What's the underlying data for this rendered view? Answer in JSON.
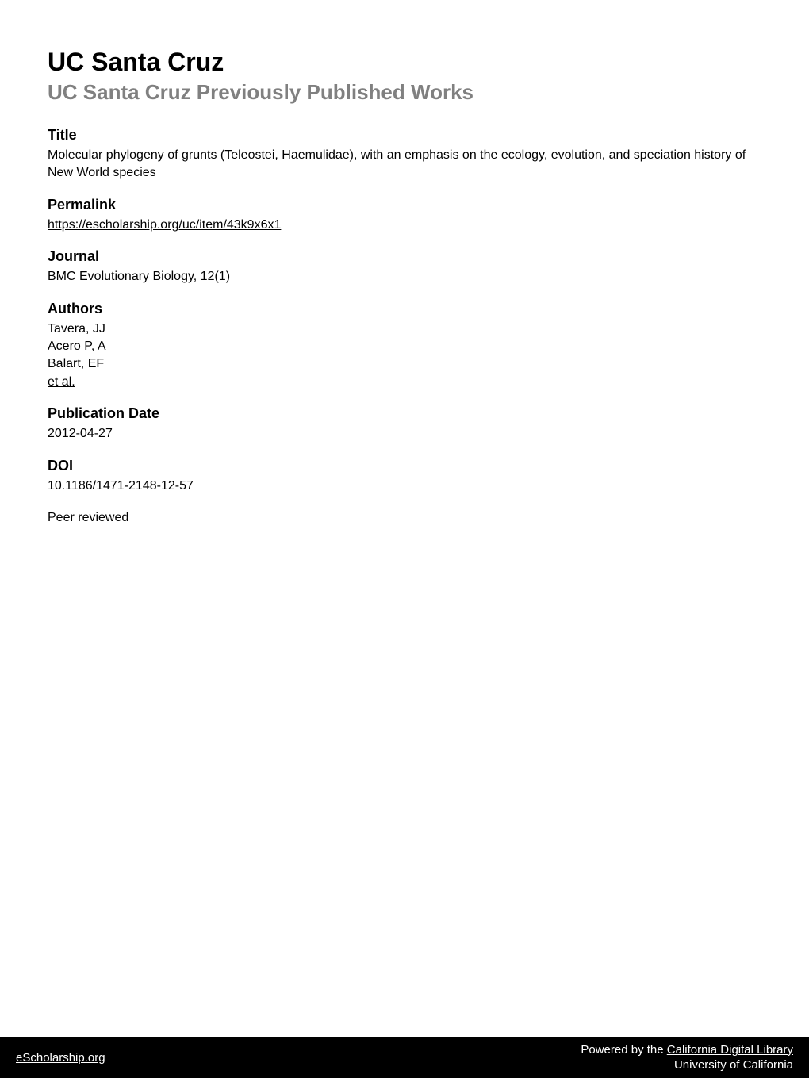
{
  "institution": "UC Santa Cruz",
  "collection": "UC Santa Cruz Previously Published Works",
  "fields": {
    "title": {
      "label": "Title",
      "value": "Molecular phylogeny of grunts (Teleostei, Haemulidae), with an emphasis on the ecology, evolution, and speciation history of New World species"
    },
    "permalink": {
      "label": "Permalink",
      "value": "https://escholarship.org/uc/item/43k9x6x1"
    },
    "journal": {
      "label": "Journal",
      "value": "BMC Evolutionary Biology, 12(1)"
    },
    "authors": {
      "label": "Authors",
      "list": [
        "Tavera, JJ",
        "Acero P, A",
        "Balart, EF"
      ],
      "more": "et al."
    },
    "pubdate": {
      "label": "Publication Date",
      "value": "2012-04-27"
    },
    "doi": {
      "label": "DOI",
      "value": "10.1186/1471-2148-12-57"
    },
    "peer": {
      "value": "Peer reviewed"
    }
  },
  "footer": {
    "left": "eScholarship.org",
    "right_prefix": "Powered by the ",
    "right_link": "California Digital Library",
    "right_line2": "University of California"
  },
  "colors": {
    "text": "#000000",
    "muted": "#808080",
    "footer_bg": "#000000",
    "footer_text": "#ffffff",
    "background": "#ffffff"
  }
}
